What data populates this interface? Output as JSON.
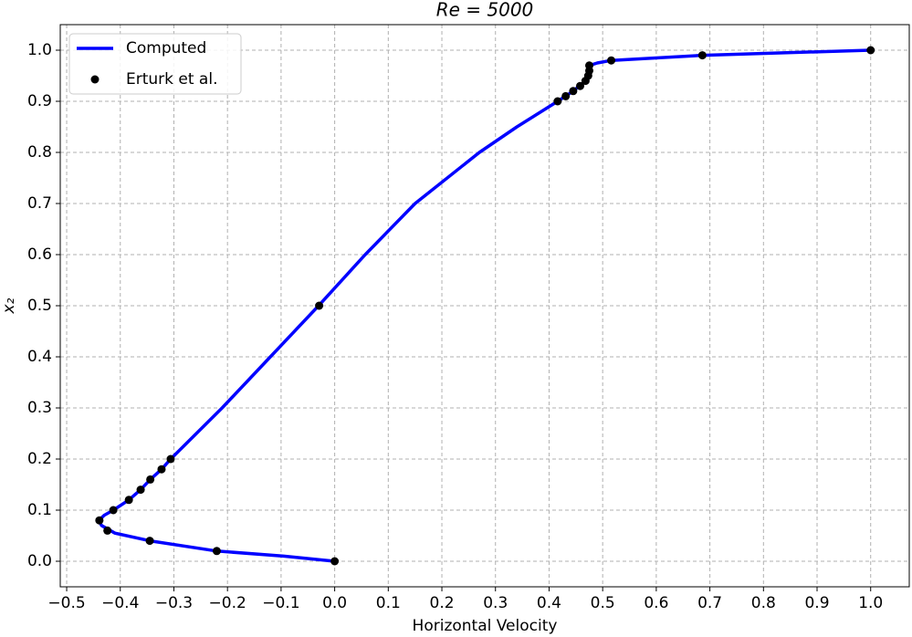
{
  "chart_data": {
    "type": "line",
    "title": "Re = 5000",
    "x_label": "Horizontal Velocity",
    "y_label": "x₂",
    "xlim": [
      -0.512,
      1.072
    ],
    "ylim": [
      -0.05,
      1.05
    ],
    "xticks": [
      {
        "value": -0.5,
        "label": "−0.5"
      },
      {
        "value": -0.4,
        "label": "−0.4"
      },
      {
        "value": -0.3,
        "label": "−0.3"
      },
      {
        "value": -0.2,
        "label": "−0.2"
      },
      {
        "value": -0.1,
        "label": "−0.1"
      },
      {
        "value": 0,
        "label": "0.0"
      },
      {
        "value": 0.1,
        "label": "0.1"
      },
      {
        "value": 0.2,
        "label": "0.2"
      },
      {
        "value": 0.3,
        "label": "0.3"
      },
      {
        "value": 0.4,
        "label": "0.4"
      },
      {
        "value": 0.5,
        "label": "0.5"
      },
      {
        "value": 0.6,
        "label": "0.6"
      },
      {
        "value": 0.7,
        "label": "0.7"
      },
      {
        "value": 0.8,
        "label": "0.8"
      },
      {
        "value": 0.9,
        "label": "0.9"
      },
      {
        "value": 1,
        "label": "1.0"
      }
    ],
    "yticks": [
      {
        "value": 0,
        "label": "0.0"
      },
      {
        "value": 0.1,
        "label": "0.1"
      },
      {
        "value": 0.2,
        "label": "0.2"
      },
      {
        "value": 0.3,
        "label": "0.3"
      },
      {
        "value": 0.4,
        "label": "0.4"
      },
      {
        "value": 0.5,
        "label": "0.5"
      },
      {
        "value": 0.6,
        "label": "0.6"
      },
      {
        "value": 0.7,
        "label": "0.7"
      },
      {
        "value": 0.8,
        "label": "0.8"
      },
      {
        "value": 0.9,
        "label": "0.9"
      },
      {
        "value": 1,
        "label": "1.0"
      }
    ],
    "grid": true,
    "legend": "upper left",
    "series": [
      {
        "name": "Computed",
        "type": "line",
        "color": "#0000ff",
        "x": [
          0,
          -0.095,
          -0.22,
          -0.345,
          -0.41,
          -0.435,
          -0.44,
          -0.43,
          -0.413,
          -0.384,
          -0.362,
          -0.344,
          -0.323,
          -0.306,
          -0.21,
          -0.12,
          -0.03,
          0.057,
          0.15,
          0.27,
          0.34,
          0.416,
          0.445,
          0.468,
          0.474,
          0.475,
          0.49,
          0.516,
          0.686,
          1.0
        ],
        "values": [
          0,
          0.01,
          0.02,
          0.04,
          0.055,
          0.07,
          0.08,
          0.09,
          0.1,
          0.12,
          0.14,
          0.16,
          0.18,
          0.2,
          0.3,
          0.4,
          0.5,
          0.6,
          0.7,
          0.8,
          0.85,
          0.9,
          0.92,
          0.94,
          0.96,
          0.97,
          0.975,
          0.98,
          0.99,
          1.0
        ]
      },
      {
        "name": "Erturk et al.",
        "type": "scatter",
        "color": "#000000",
        "x": [
          1.0,
          0.686,
          0.516,
          0.475,
          0.475,
          0.473,
          0.468,
          0.458,
          0.445,
          0.431,
          0.416,
          -0.029,
          -0.306,
          -0.323,
          -0.344,
          -0.362,
          -0.384,
          -0.413,
          -0.439,
          -0.424,
          -0.345,
          -0.22,
          0
        ],
        "values": [
          1.0,
          0.99,
          0.98,
          0.97,
          0.96,
          0.95,
          0.94,
          0.93,
          0.92,
          0.91,
          0.9,
          0.5,
          0.2,
          0.18,
          0.16,
          0.14,
          0.12,
          0.1,
          0.08,
          0.06,
          0.04,
          0.02,
          0
        ]
      }
    ]
  }
}
